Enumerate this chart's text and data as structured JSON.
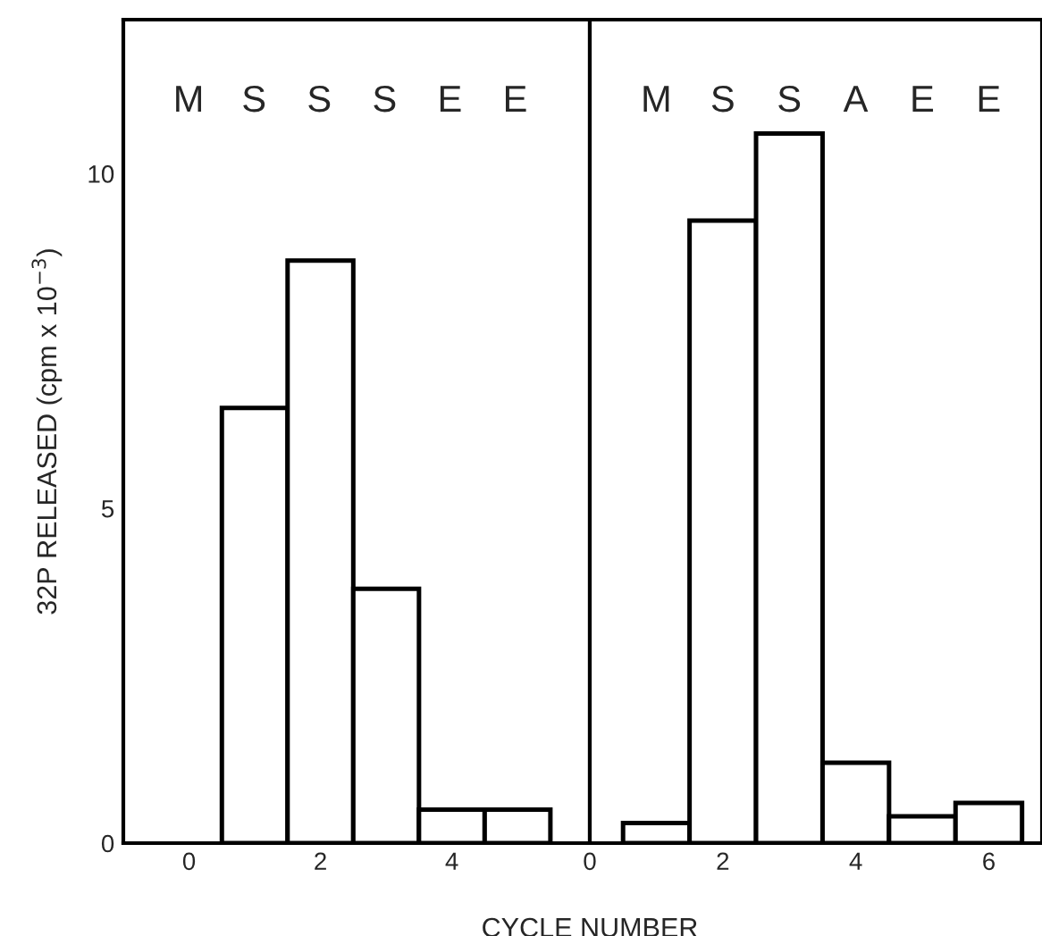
{
  "chart_data": [
    {
      "type": "bar",
      "ylabel": "32P RELEASED (cpm x 10$^{−3}$)",
      "xlabel": "CYCLE NUMBER",
      "x": [
        1,
        2,
        3,
        4,
        5
      ],
      "values": [
        6.5,
        8.7,
        3.8,
        0.5,
        0.5
      ],
      "color": "#000000",
      "xlim": [
        -1,
        6.1
      ],
      "xticks": [
        0,
        2,
        4
      ],
      "ylim": [
        0,
        12.3
      ],
      "yticks": [
        0,
        5,
        10
      ],
      "grid": false,
      "annotations": [
        "M",
        "S",
        "S",
        "S",
        "E",
        "E"
      ]
    },
    {
      "type": "bar",
      "x": [
        1,
        2,
        3,
        4,
        5,
        6
      ],
      "values": [
        0.3,
        9.3,
        10.6,
        1.2,
        0.4,
        0.6
      ],
      "color": "#000000",
      "xlim": [
        0,
        6.8
      ],
      "xticks": [
        0,
        2,
        4,
        6
      ],
      "ylim": [
        0,
        12.3
      ],
      "yticks": [
        0,
        5,
        10
      ],
      "grid": false,
      "tick_labels": "x",
      "annotations": [
        "M",
        "S",
        "S",
        "A",
        "E",
        "E"
      ]
    }
  ]
}
